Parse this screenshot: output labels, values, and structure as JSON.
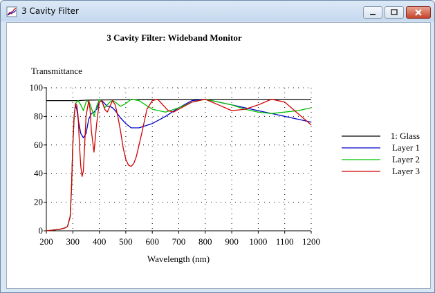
{
  "window": {
    "title": "3 Cavity Filter",
    "controls": {
      "minimize": "minimize",
      "maximize": "maximize",
      "close": "close"
    }
  },
  "chart_data": {
    "type": "line",
    "title": "3 Cavity Filter: Wideband Monitor",
    "xlabel": "Wavelength (nm)",
    "ylabel": "Transmittance",
    "xlim": [
      200,
      1200
    ],
    "ylim": [
      0,
      100
    ],
    "xticks": [
      200,
      300,
      400,
      500,
      600,
      700,
      800,
      900,
      1000,
      1100,
      1200
    ],
    "yticks": [
      0,
      20,
      40,
      60,
      80,
      100
    ],
    "grid": true,
    "legend_position": "right",
    "series": [
      {
        "name": "1: Glass",
        "color": "#000000",
        "x": [
          200,
          280,
          290,
          300,
          320,
          350,
          400,
          500,
          600,
          700,
          800,
          900,
          1000,
          1100,
          1200
        ],
        "y": [
          91,
          91,
          91,
          91,
          91,
          91.3,
          91.5,
          91.6,
          91.7,
          91.8,
          91.8,
          91.8,
          91.8,
          91.8,
          91.8
        ]
      },
      {
        "name": "Layer 1",
        "color": "#0000c8",
        "x": [
          200,
          250,
          270,
          280,
          290,
          295,
          300,
          305,
          310,
          315,
          320,
          330,
          340,
          350,
          360,
          370,
          380,
          390,
          400,
          410,
          420,
          430,
          440,
          450,
          460,
          480,
          500,
          520,
          550,
          600,
          650,
          700,
          750,
          800,
          850,
          900,
          950,
          1000,
          1050,
          1100,
          1150,
          1200
        ],
        "y": [
          0,
          1,
          2,
          3,
          10,
          30,
          60,
          80,
          88,
          85,
          78,
          68,
          65,
          68,
          78,
          82,
          83,
          85,
          90,
          91,
          89,
          87,
          87,
          86,
          84,
          79,
          75,
          72,
          72,
          75,
          80,
          86,
          91,
          92,
          90,
          88,
          86,
          84,
          82,
          80,
          78,
          76
        ]
      },
      {
        "name": "Layer 2",
        "color": "#00c000",
        "x": [
          200,
          250,
          270,
          280,
          290,
          295,
          300,
          305,
          310,
          320,
          330,
          340,
          350,
          360,
          370,
          380,
          390,
          400,
          410,
          420,
          430,
          440,
          450,
          460,
          480,
          500,
          520,
          550,
          600,
          650,
          700,
          750,
          800,
          850,
          900,
          950,
          1000,
          1050,
          1100,
          1150,
          1200
        ],
        "y": [
          0,
          1,
          2,
          3,
          10,
          30,
          60,
          80,
          89,
          91,
          88,
          84,
          90,
          91,
          86,
          80,
          87,
          92,
          90,
          86,
          88,
          90,
          91,
          90,
          87,
          89,
          92,
          91,
          85,
          83,
          86,
          90,
          92,
          90,
          88,
          85,
          83,
          82,
          83,
          84,
          86
        ]
      },
      {
        "name": "Layer 3",
        "color": "#d00000",
        "x": [
          200,
          250,
          270,
          280,
          290,
          295,
          300,
          305,
          310,
          315,
          320,
          325,
          330,
          335,
          340,
          350,
          360,
          365,
          370,
          380,
          390,
          400,
          410,
          420,
          430,
          440,
          450,
          460,
          470,
          480,
          490,
          500,
          510,
          520,
          530,
          540,
          560,
          580,
          600,
          620,
          640,
          660,
          680,
          700,
          750,
          800,
          850,
          900,
          950,
          1000,
          1050,
          1100,
          1150,
          1200
        ],
        "y": [
          0,
          1,
          2,
          3,
          10,
          30,
          60,
          80,
          89,
          88,
          80,
          60,
          45,
          38,
          42,
          80,
          91,
          85,
          70,
          55,
          75,
          90,
          91,
          85,
          83,
          87,
          91,
          88,
          80,
          70,
          58,
          50,
          46,
          45,
          47,
          52,
          68,
          85,
          91,
          92,
          88,
          84,
          83,
          85,
          90,
          92,
          88,
          84,
          85,
          88,
          92,
          90,
          82,
          74
        ]
      }
    ]
  }
}
